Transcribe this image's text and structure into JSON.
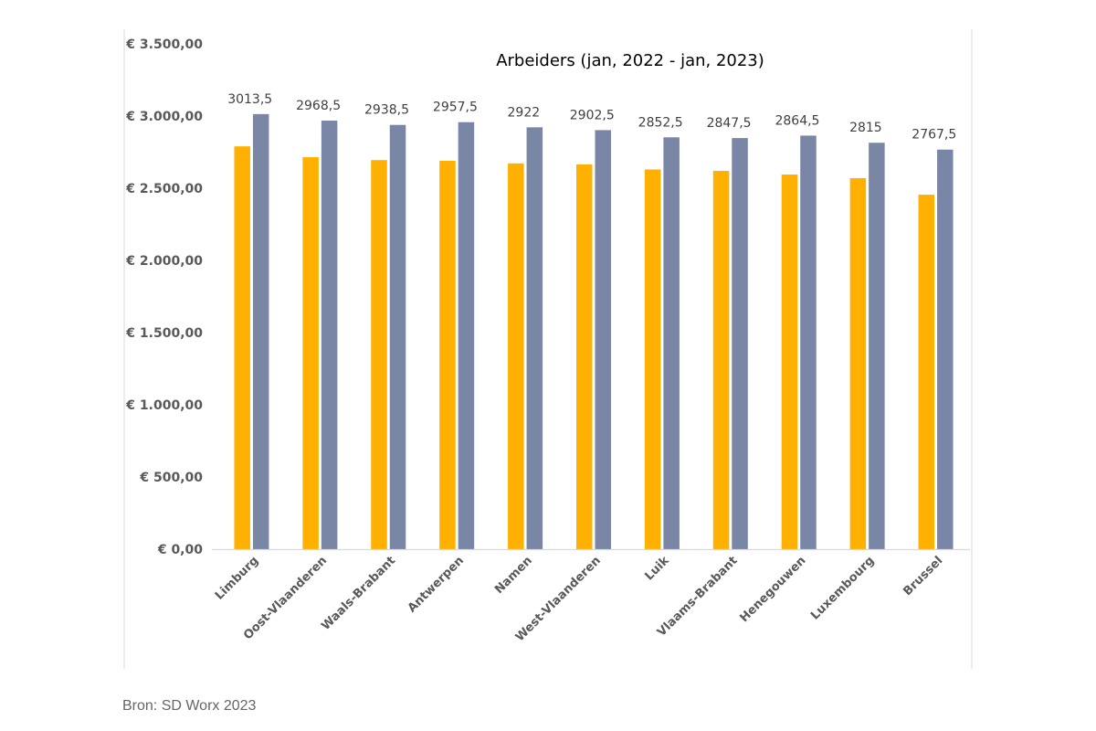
{
  "chart_data": {
    "type": "bar",
    "title": "Arbeiders (jan, 2022 - jan, 2023)",
    "xlabel": "",
    "ylabel": "",
    "ylim": [
      0,
      3500
    ],
    "yticks": [
      0,
      500,
      1000,
      1500,
      2000,
      2500,
      3000,
      3500
    ],
    "ytick_labels": [
      "€ 0,00",
      "€ 500,00",
      "€ 1.000,00",
      "€ 1.500,00",
      "€ 2.000,00",
      "€ 2.500,00",
      "€ 3.000,00",
      "€ 3.500,00"
    ],
    "categories": [
      "Limburg",
      "Oost-Vlaanderen",
      "Waals-Brabant",
      "Antwerpen",
      "Namen",
      "West-Vlaanderen",
      "Luik",
      "Vlaams-Brabant",
      "Henegouwen",
      "Luxembourg",
      "Brussel"
    ],
    "series": [
      {
        "name": "jan 2022",
        "color": "#FFB000",
        "values": [
          2790,
          2715,
          2695,
          2690,
          2672,
          2665,
          2630,
          2620,
          2595,
          2570,
          2455
        ]
      },
      {
        "name": "jan 2023",
        "color": "#7A86A6",
        "values": [
          3013.5,
          2968.5,
          2938.5,
          2957.5,
          2922,
          2902.5,
          2852.5,
          2847.5,
          2864.5,
          2815,
          2767.5
        ]
      }
    ],
    "data_labels": [
      "3013,5",
      "2968,5",
      "2938,5",
      "2957,5",
      "2922",
      "2902,5",
      "2852,5",
      "2847,5",
      "2864,5",
      "2815",
      "2767,5"
    ],
    "grid": false,
    "legend": "none"
  },
  "source": {
    "text": "Bron: SD Worx 2023"
  }
}
